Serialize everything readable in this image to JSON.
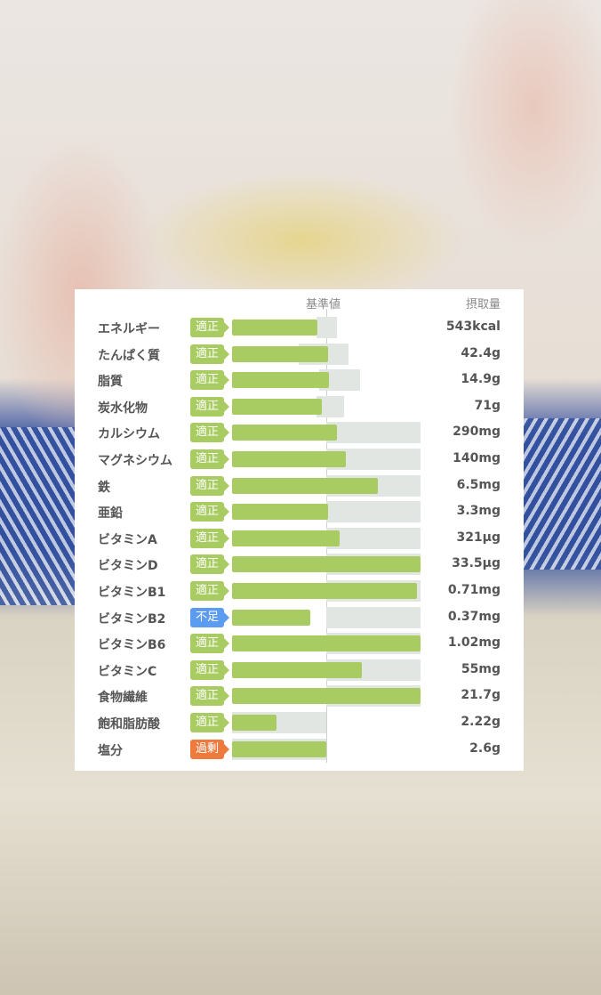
{
  "chart_data": {
    "type": "bar",
    "orientation": "horizontal",
    "header": {
      "reference": "基準値",
      "intake": "摂取量"
    },
    "unit_note": "bar length as % of reference value",
    "colors": {
      "bar": "#a8cc62",
      "適正": "#a8cc62",
      "不足": "#5b9cf0",
      "過剰": "#ef7a3e",
      "range": "#e2e6e2"
    },
    "xlim": [
      0,
      200
    ],
    "rows": [
      {
        "name": "エネルギー",
        "status": "適正",
        "pct": 91,
        "range": [
          90,
          111
        ],
        "intake": "543kcal"
      },
      {
        "name": "たんぱく質",
        "status": "適正",
        "pct": 102,
        "range": [
          71,
          124
        ],
        "intake": "42.4g"
      },
      {
        "name": "脂質",
        "status": "適正",
        "pct": 103,
        "range": [
          92,
          136
        ],
        "intake": "14.9g"
      },
      {
        "name": "炭水化物",
        "status": "適正",
        "pct": 95,
        "range": [
          90,
          119
        ],
        "intake": "71g"
      },
      {
        "name": "カルシウム",
        "status": "適正",
        "pct": 111,
        "range": [
          100,
          200
        ],
        "intake": "290mg"
      },
      {
        "name": "マグネシウム",
        "status": "適正",
        "pct": 121,
        "range": [
          100,
          200
        ],
        "intake": "140mg"
      },
      {
        "name": "鉄",
        "status": "適正",
        "pct": 155,
        "range": [
          100,
          200
        ],
        "intake": "6.5mg"
      },
      {
        "name": "亜鉛",
        "status": "適正",
        "pct": 102,
        "range": [
          100,
          200
        ],
        "intake": "3.3mg"
      },
      {
        "name": "ビタミンA",
        "status": "適正",
        "pct": 114,
        "range": [
          100,
          200
        ],
        "intake": "321µg"
      },
      {
        "name": "ビタミンD",
        "status": "適正",
        "pct": 200,
        "range": [
          100,
          200
        ],
        "intake": "33.5µg"
      },
      {
        "name": "ビタミンB1",
        "status": "適正",
        "pct": 196,
        "range": [
          100,
          200
        ],
        "intake": "0.71mg"
      },
      {
        "name": "ビタミンB2",
        "status": "不足",
        "pct": 83,
        "range": [
          100,
          200
        ],
        "intake": "0.37mg"
      },
      {
        "name": "ビタミンB6",
        "status": "適正",
        "pct": 200,
        "range": [
          100,
          200
        ],
        "intake": "1.02mg"
      },
      {
        "name": "ビタミンC",
        "status": "適正",
        "pct": 138,
        "range": [
          100,
          200
        ],
        "intake": "55mg"
      },
      {
        "name": "食物繊維",
        "status": "適正",
        "pct": 200,
        "range": [
          100,
          200
        ],
        "intake": "21.7g"
      },
      {
        "name": "飽和脂肪酸",
        "status": "適正",
        "pct": 47,
        "range": [
          0,
          100
        ],
        "intake": "2.22g"
      },
      {
        "name": "塩分",
        "status": "過剰",
        "pct": 100,
        "range": [
          0,
          100
        ],
        "intake": "2.6g"
      }
    ]
  }
}
